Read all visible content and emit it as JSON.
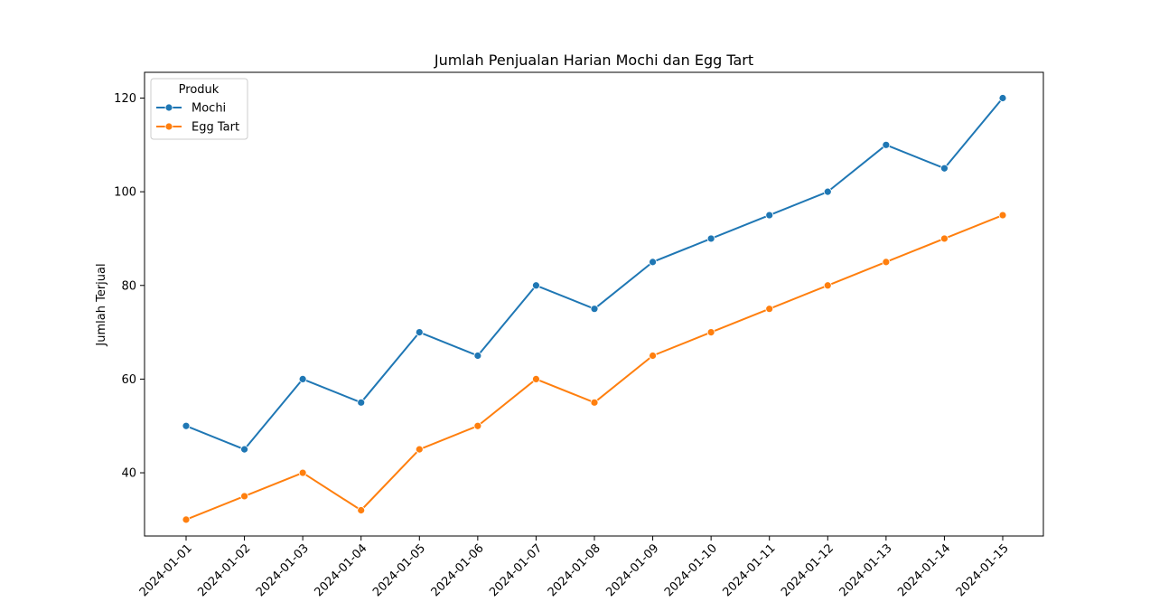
{
  "chart_data": {
    "type": "line",
    "title": "Jumlah Penjualan Harian Mochi dan Egg Tart",
    "xlabel": "",
    "ylabel": "Jumlah Terjual",
    "x": [
      "2024-01-01",
      "2024-01-02",
      "2024-01-03",
      "2024-01-04",
      "2024-01-05",
      "2024-01-06",
      "2024-01-07",
      "2024-01-08",
      "2024-01-09",
      "2024-01-10",
      "2024-01-11",
      "2024-01-12",
      "2024-01-13",
      "2024-01-14",
      "2024-01-15"
    ],
    "ylim": [
      26.5,
      125.5
    ],
    "yticks": [
      40,
      60,
      80,
      100,
      120
    ],
    "grid": false,
    "legend": {
      "title": "Produk",
      "placement": "top-left"
    },
    "series": [
      {
        "name": "Mochi",
        "color": "#1f77b4",
        "marker": "circle",
        "values": [
          50,
          45,
          60,
          55,
          70,
          65,
          80,
          75,
          85,
          90,
          95,
          100,
          110,
          105,
          120
        ]
      },
      {
        "name": "Egg Tart",
        "color": "#ff7f0e",
        "marker": "circle",
        "values": [
          30,
          35,
          40,
          32,
          45,
          50,
          60,
          55,
          65,
          70,
          75,
          80,
          85,
          90,
          95
        ]
      }
    ]
  }
}
